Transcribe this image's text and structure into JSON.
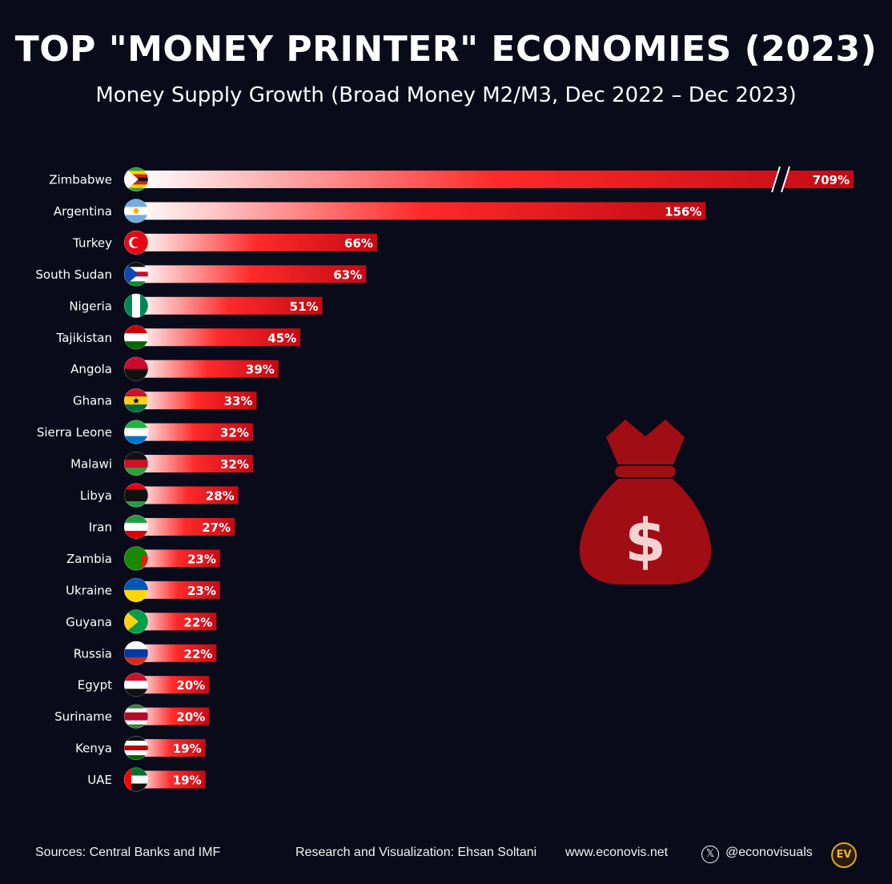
{
  "title": "TOP \"MONEY PRINTER\" ECONOMIES (2023)",
  "subtitle": "Money Supply Growth (Broad Money M2/M3, Dec 2022 – Dec 2023)",
  "chart_data": {
    "type": "bar",
    "orientation": "horizontal",
    "title": "TOP \"MONEY PRINTER\" ECONOMIES (2023)",
    "subtitle": "Money Supply Growth (Broad Money M2/M3, Dec 2022 – Dec 2023)",
    "categories": [
      "Zimbabwe",
      "Argentina",
      "Turkey",
      "South Sudan",
      "Nigeria",
      "Tajikistan",
      "Angola",
      "Ghana",
      "Sierra Leone",
      "Malawi",
      "Libya",
      "Iran",
      "Zambia",
      "Ukraine",
      "Guyana",
      "Russia",
      "Egypt",
      "Suriname",
      "Kenya",
      "UAE"
    ],
    "values": [
      709,
      156,
      66,
      63,
      51,
      45,
      39,
      33,
      32,
      32,
      28,
      27,
      23,
      23,
      22,
      22,
      20,
      20,
      19,
      19
    ],
    "labels": [
      "709%",
      "156%",
      "66%",
      "63%",
      "51%",
      "45%",
      "39%",
      "33%",
      "32%",
      "32%",
      "28%",
      "27%",
      "23%",
      "23%",
      "22%",
      "22%",
      "20%",
      "20%",
      "19%",
      "19%"
    ],
    "axis_break_on": "Zimbabwe",
    "bar_color": "#e8101e",
    "grid": false
  },
  "footer": {
    "sources": "Sources: Central Banks and IMF",
    "credit": "Research and Visualization: Ehsan Soltani",
    "website": "www.econovis.net",
    "handle": "@econovisuals",
    "x_icon": "𝕏",
    "logo": "EV"
  },
  "colors": {
    "background": "#090b1a",
    "bar": "#e8101e",
    "moneybag": "#a00d13"
  },
  "icons": [
    "money-bag-icon",
    "dollar-sign-icon",
    "x-logo-icon",
    "econovis-logo"
  ]
}
